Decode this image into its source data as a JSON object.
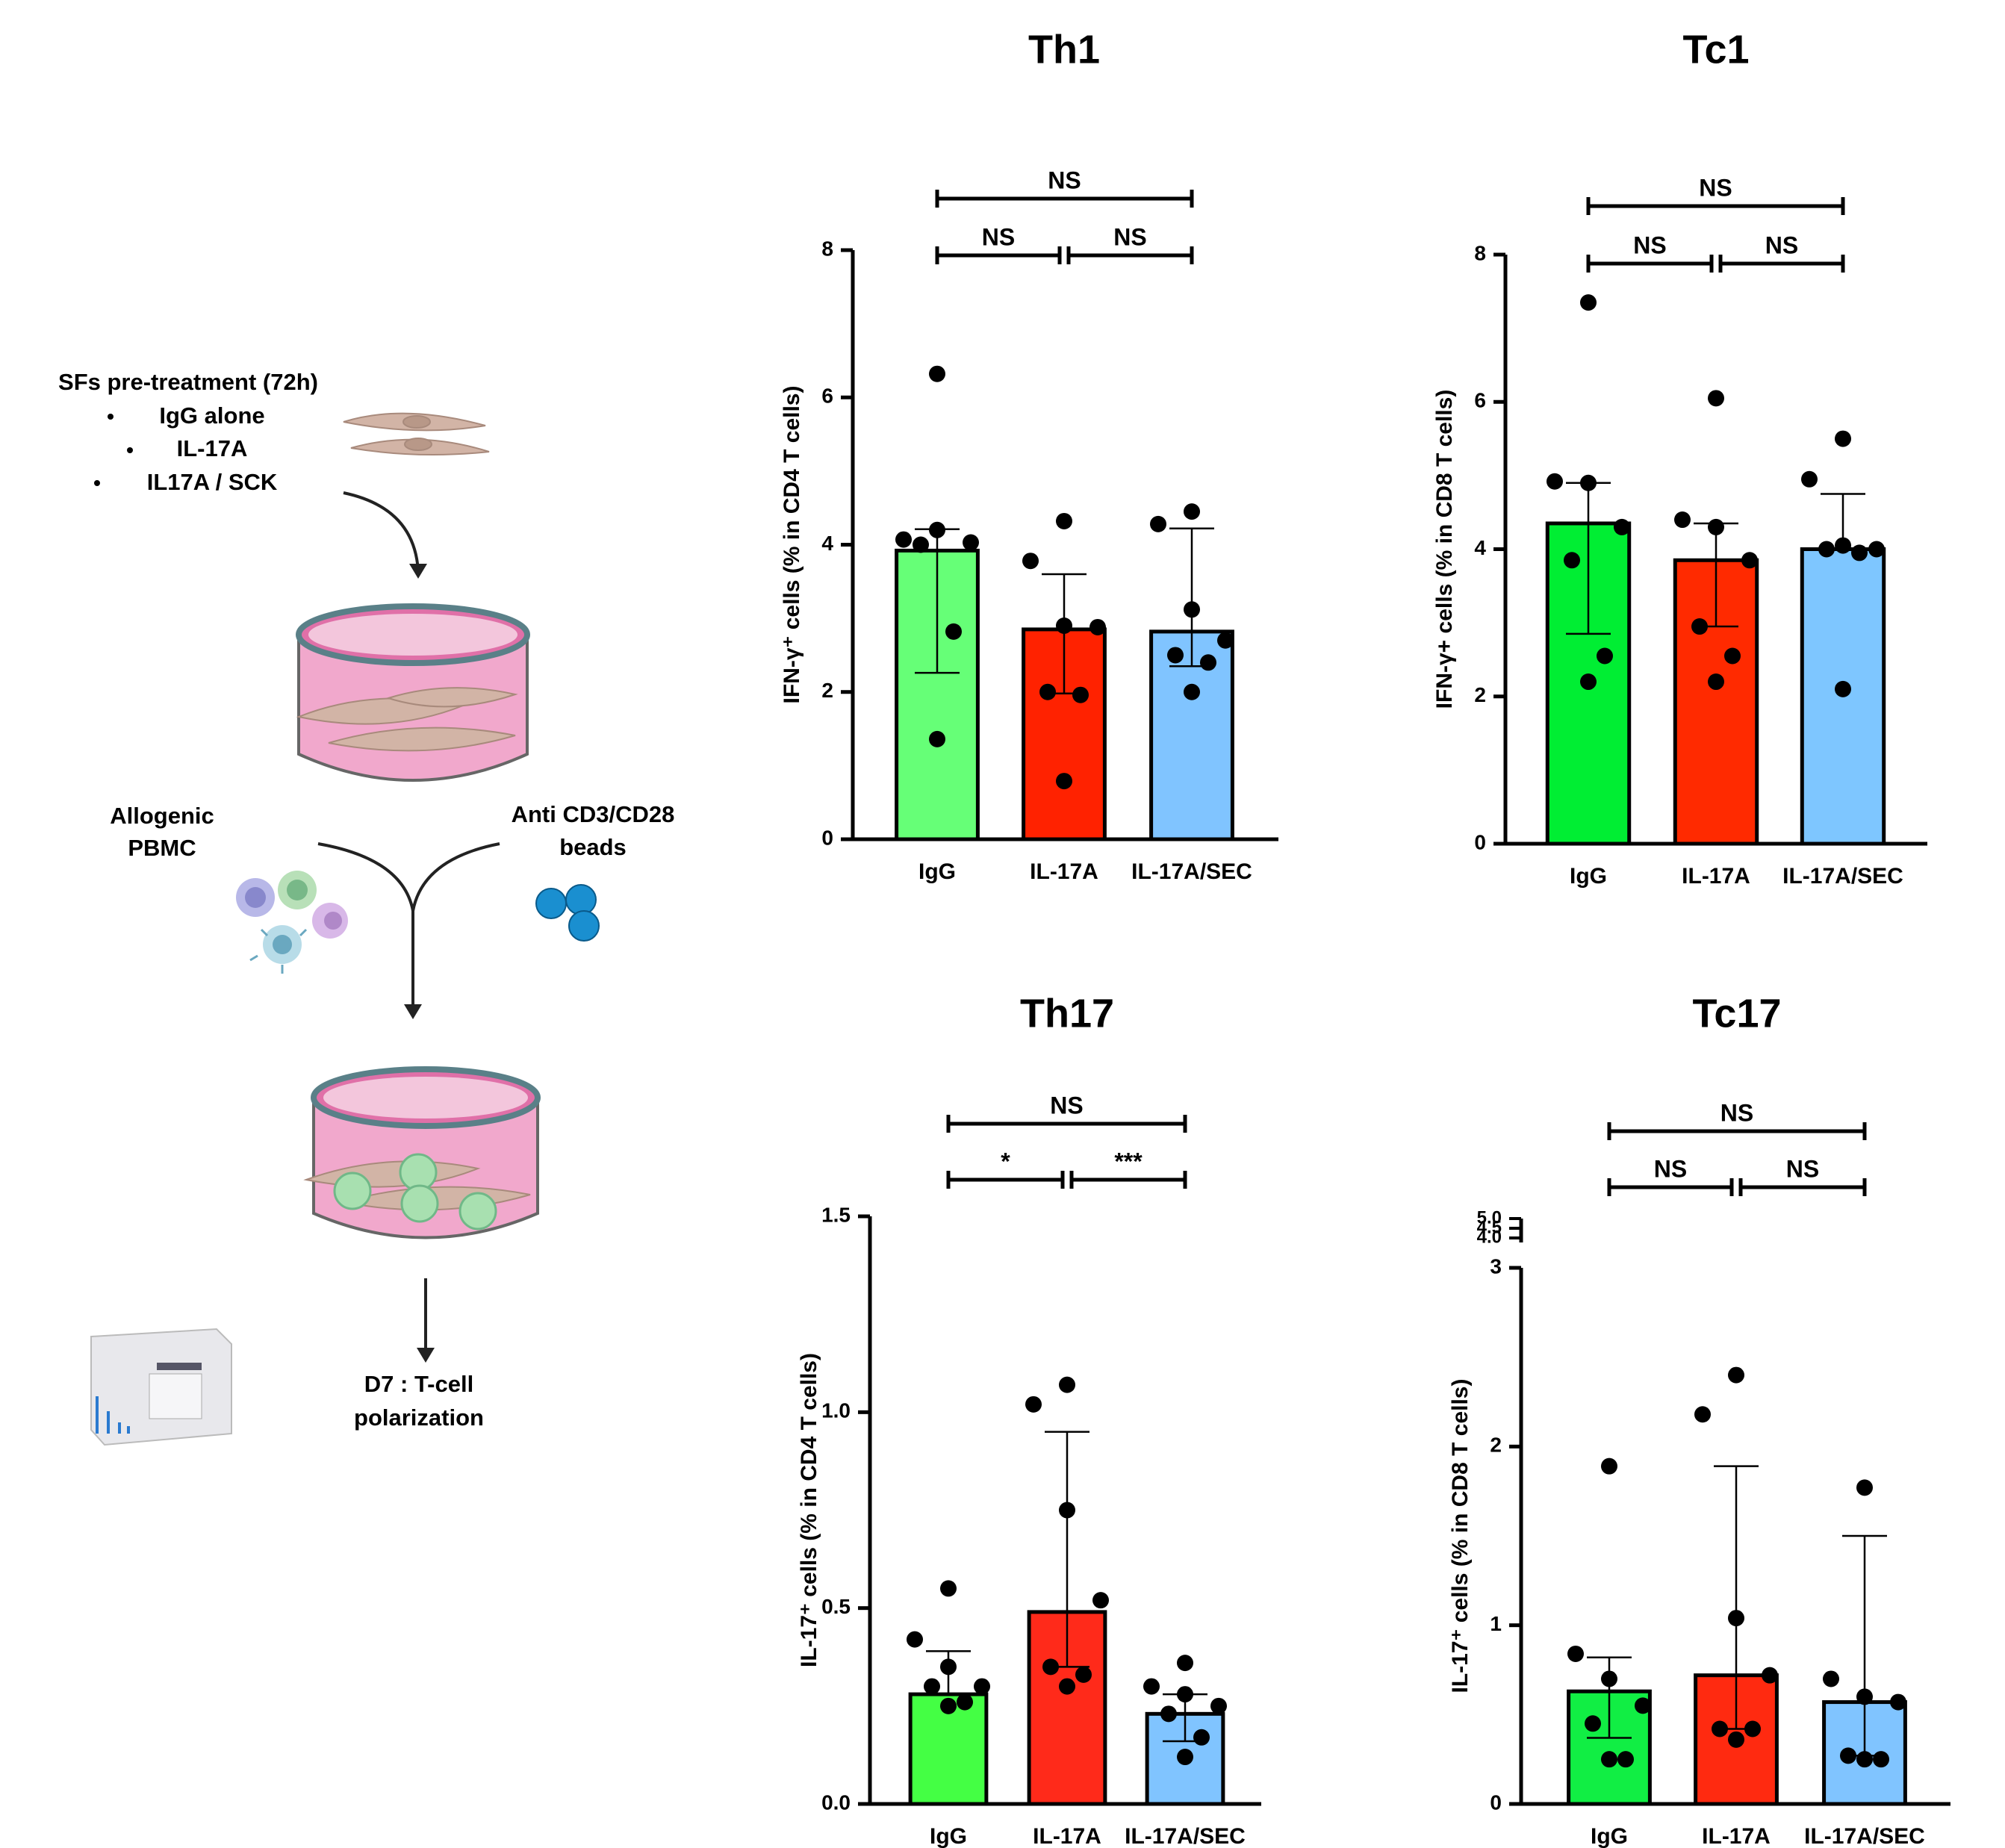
{
  "diagram": {
    "pretreatment": "SFs pre-treatment (72h)",
    "treatments": [
      "IgG alone",
      "IL-17A",
      "IL17A / SCK"
    ],
    "pbmc": [
      "Allogenic",
      "PBMC"
    ],
    "beads": [
      "Anti CD3/CD28",
      "beads"
    ],
    "readout": [
      "D7 : T-cell",
      "polarization"
    ]
  },
  "chart_data": [
    {
      "type": "bar",
      "title": "Th1",
      "y_label": "IFN-γ⁺ cells (% in CD4 T cells)",
      "categories": [
        "IgG",
        "IL-17A",
        "IL-17A/SEC"
      ],
      "colors": [
        "#66ff77",
        "#ff2200",
        "#80c4ff"
      ],
      "values": [
        3.92,
        2.85,
        2.82
      ],
      "error_low": [
        2.26,
        1.98,
        2.35
      ],
      "error_high": [
        4.21,
        3.6,
        4.22
      ],
      "points": [
        [
          6.32,
          4.07,
          4.2,
          4.03,
          4.0,
          2.82,
          1.36
        ],
        [
          4.32,
          3.78,
          2.9,
          2.88,
          2.0,
          1.96,
          0.79
        ],
        [
          4.45,
          4.28,
          3.12,
          2.7,
          2.5,
          2.4,
          2.0
        ]
      ],
      "ylim": [
        0,
        8
      ],
      "yticks": [
        0,
        2,
        4,
        6,
        8
      ],
      "comparisons": [
        {
          "groups": [
            "IgG",
            "IL-17A"
          ],
          "label": "NS"
        },
        {
          "groups": [
            "IL-17A",
            "IL-17A/SEC"
          ],
          "label": "NS"
        },
        {
          "groups": [
            "IgG",
            "IL-17A/SEC"
          ],
          "label": "NS"
        }
      ]
    },
    {
      "type": "bar",
      "title": "Tc1",
      "y_label": "IFN-γ+ cells (% in CD8 T cells)",
      "categories": [
        "IgG",
        "IL-17A",
        "IL-17A/SEC"
      ],
      "colors": [
        "#00ee33",
        "#ff2a00",
        "#7ec6ff"
      ],
      "values": [
        4.35,
        3.85,
        4.0
      ],
      "error_low": [
        2.85,
        2.95,
        4.0
      ],
      "error_high": [
        4.9,
        4.35,
        4.75
      ],
      "points": [
        [
          7.35,
          4.92,
          4.9,
          4.3,
          3.85,
          2.55,
          2.2
        ],
        [
          6.05,
          4.4,
          4.3,
          3.85,
          2.95,
          2.55,
          2.2
        ],
        [
          5.5,
          4.95,
          4.05,
          4.0,
          4.0,
          3.95,
          2.1
        ]
      ],
      "ylim": [
        0,
        8
      ],
      "yticks": [
        0,
        2,
        4,
        6,
        8
      ],
      "comparisons": [
        {
          "groups": [
            "IgG",
            "IL-17A"
          ],
          "label": "NS"
        },
        {
          "groups": [
            "IL-17A",
            "IL-17A/SEC"
          ],
          "label": "NS"
        },
        {
          "groups": [
            "IgG",
            "IL-17A/SEC"
          ],
          "label": "NS"
        }
      ]
    },
    {
      "type": "bar",
      "title": "Th17",
      "y_label": "IL-17⁺ cells (% in CD4 T cells)",
      "categories": [
        "IgG",
        "IL-17A",
        "IL-17A/SEC"
      ],
      "colors": [
        "#44ff44",
        "#ff2a1a",
        "#80c4ff"
      ],
      "values": [
        0.28,
        0.49,
        0.23
      ],
      "error_low": [
        0.28,
        0.35,
        0.16
      ],
      "error_high": [
        0.39,
        0.95,
        0.28
      ],
      "points": [
        [
          0.55,
          0.42,
          0.35,
          0.3,
          0.3,
          0.26,
          0.25
        ],
        [
          1.07,
          1.02,
          0.75,
          0.52,
          0.35,
          0.33,
          0.3
        ],
        [
          0.36,
          0.3,
          0.28,
          0.25,
          0.23,
          0.17,
          0.12
        ]
      ],
      "ylim": [
        0,
        1.5
      ],
      "yticks": [
        {
          "value": 0,
          "label": "0.0"
        },
        {
          "value": 0.5,
          "label": "0.5"
        },
        {
          "value": 1,
          "label": "1.0"
        },
        {
          "value": 1.5,
          "label": "1.5"
        }
      ],
      "comparisons": [
        {
          "groups": [
            "IgG",
            "IL-17A"
          ],
          "label": "*"
        },
        {
          "groups": [
            "IL-17A",
            "IL-17A/SEC"
          ],
          "label": "***"
        },
        {
          "groups": [
            "IgG",
            "IL-17A/SEC"
          ],
          "label": "NS"
        }
      ]
    },
    {
      "type": "bar",
      "title": "Tc17",
      "y_label": "IL-17⁺ cells (% in CD8 T cells)",
      "categories": [
        "IgG",
        "IL-17A",
        "IL-17A/SEC"
      ],
      "colors": [
        "#11ee44",
        "#ff2a10",
        "#80c4ff"
      ],
      "values": [
        0.63,
        0.72,
        0.57
      ],
      "error_low": [
        0.37,
        0.42,
        0.27
      ],
      "error_high": [
        0.82,
        1.89,
        1.5
      ],
      "points": [
        [
          1.89,
          0.84,
          0.7,
          0.55,
          0.45,
          0.25,
          0.25
        ],
        [
          2.4,
          2.18,
          1.04,
          0.72,
          0.42,
          0.42,
          0.36
        ],
        [
          1.77,
          0.7,
          0.6,
          0.57,
          0.27,
          0.25,
          0.25
        ]
      ],
      "ylim": [
        0,
        3
      ],
      "yticks": [
        0,
        1,
        2,
        3
      ],
      "upper_ylim": [
        4,
        5
      ],
      "upper_yticks": [
        {
          "value": 4,
          "label": "4.0"
        },
        {
          "value": 4.5,
          "label": "4.5"
        },
        {
          "value": 5,
          "label": "5.0"
        }
      ],
      "comparisons": [
        {
          "groups": [
            "IgG",
            "IL-17A"
          ],
          "label": "NS"
        },
        {
          "groups": [
            "IL-17A",
            "IL-17A/SEC"
          ],
          "label": "NS"
        },
        {
          "groups": [
            "IgG",
            "IL-17A/SEC"
          ],
          "label": "NS"
        }
      ]
    }
  ]
}
